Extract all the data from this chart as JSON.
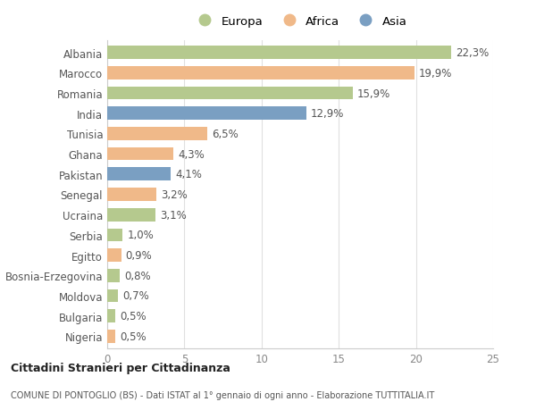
{
  "countries": [
    "Albania",
    "Marocco",
    "Romania",
    "India",
    "Tunisia",
    "Ghana",
    "Pakistan",
    "Senegal",
    "Ucraina",
    "Serbia",
    "Egitto",
    "Bosnia-Erzegovina",
    "Moldova",
    "Bulgaria",
    "Nigeria"
  ],
  "values": [
    22.3,
    19.9,
    15.9,
    12.9,
    6.5,
    4.3,
    4.1,
    3.2,
    3.1,
    1.0,
    0.9,
    0.8,
    0.7,
    0.5,
    0.5
  ],
  "continents": [
    "Europa",
    "Africa",
    "Europa",
    "Asia",
    "Africa",
    "Africa",
    "Asia",
    "Africa",
    "Europa",
    "Europa",
    "Africa",
    "Europa",
    "Europa",
    "Europa",
    "Africa"
  ],
  "labels": [
    "22,3%",
    "19,9%",
    "15,9%",
    "12,9%",
    "6,5%",
    "4,3%",
    "4,1%",
    "3,2%",
    "3,1%",
    "1,0%",
    "0,9%",
    "0,8%",
    "0,7%",
    "0,5%",
    "0,5%"
  ],
  "colors": {
    "Europa": "#b5c98e",
    "Africa": "#f0b989",
    "Asia": "#7a9fc2"
  },
  "xlim": [
    0,
    25
  ],
  "xticks": [
    0,
    5,
    10,
    15,
    20,
    25
  ],
  "background_color": "#ffffff",
  "title_bold": "Cittadini Stranieri per Cittadinanza",
  "subtitle": "COMUNE DI PONTOGLIO (BS) - Dati ISTAT al 1° gennaio di ogni anno - Elaborazione TUTTITALIA.IT",
  "bar_height": 0.65,
  "grid_color": "#e0e0e0",
  "axes_color": "#cccccc",
  "label_fontsize": 8.5,
  "tick_fontsize": 8.5,
  "legend_fontsize": 9.5
}
